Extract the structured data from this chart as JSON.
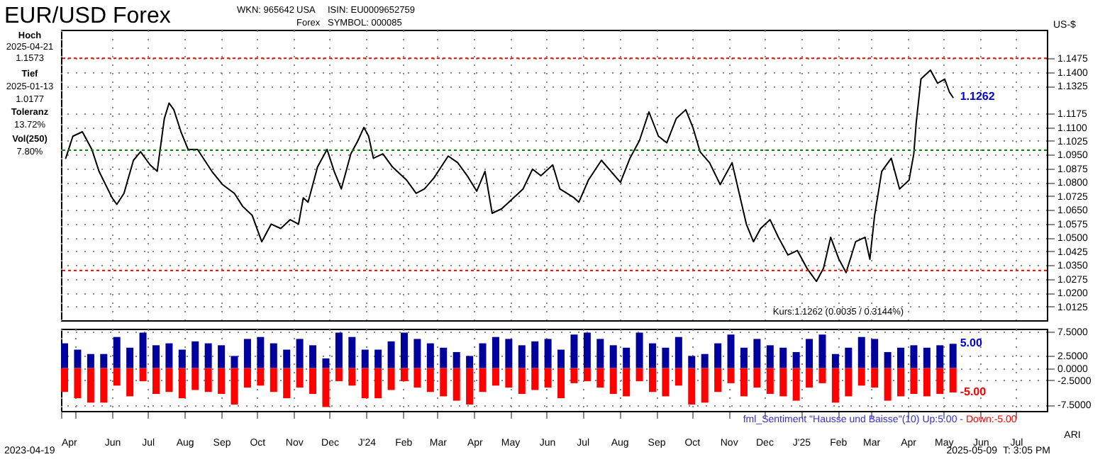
{
  "chart_data": [
    {
      "type": "line",
      "title": "EUR/USD Forex",
      "ylabel": "US-$",
      "x": [
        "2023-04-23",
        "2023-04-29",
        "2023-05-07",
        "2023-05-15",
        "2023-05-21",
        "2023-06-01",
        "2023-06-05",
        "2023-06-11",
        "2023-06-19",
        "2023-06-25",
        "2023-07-03",
        "2023-07-09",
        "2023-07-15",
        "2023-07-19",
        "2023-07-23",
        "2023-07-29",
        "2023-08-04",
        "2023-08-12",
        "2023-08-24",
        "2023-09-02",
        "2023-09-12",
        "2023-09-19",
        "2023-09-27",
        "2023-10-05",
        "2023-10-13",
        "2023-10-21",
        "2023-10-29",
        "2023-11-05",
        "2023-11-09",
        "2023-11-13",
        "2023-11-21",
        "2023-11-29",
        "2023-12-05",
        "2023-12-11",
        "2023-12-19",
        "2023-12-25",
        "2023-12-30",
        "2024-01-03",
        "2024-01-07",
        "2024-01-15",
        "2024-01-23",
        "2024-02-04",
        "2024-02-12",
        "2024-02-19",
        "2024-02-27",
        "2024-03-10",
        "2024-03-18",
        "2024-03-26",
        "2024-04-03",
        "2024-04-10",
        "2024-04-16",
        "2024-04-24",
        "2024-05-04",
        "2024-05-12",
        "2024-05-20",
        "2024-05-27",
        "2024-06-06",
        "2024-06-12",
        "2024-06-24",
        "2024-06-28",
        "2024-07-06",
        "2024-07-17",
        "2024-07-25",
        "2024-08-02",
        "2024-08-10",
        "2024-08-18",
        "2024-08-26",
        "2024-09-03",
        "2024-09-10",
        "2024-09-18",
        "2024-09-26",
        "2024-10-02",
        "2024-10-08",
        "2024-10-16",
        "2024-10-25",
        "2024-11-04",
        "2024-11-10",
        "2024-11-16",
        "2024-11-22",
        "2024-11-28",
        "2024-12-06",
        "2024-12-13",
        "2024-12-21",
        "2024-12-29",
        "2025-01-06",
        "2025-01-14",
        "2025-01-20",
        "2025-01-26",
        "2025-02-02",
        "2025-02-08",
        "2025-02-16",
        "2025-02-24",
        "2025-02-28",
        "2025-03-04",
        "2025-03-10",
        "2025-03-18",
        "2025-03-25",
        "2025-04-02",
        "2025-04-06",
        "2025-04-08",
        "2025-04-12",
        "2025-04-20",
        "2025-04-26",
        "2025-05-02",
        "2025-05-06",
        "2025-05-09"
      ],
      "series": [
        {
          "color": "#000000",
          "values": [
            1.0931,
            1.1051,
            1.1075,
            1.0979,
            1.086,
            1.0716,
            1.068,
            1.074,
            1.092,
            1.0967,
            1.0895,
            1.086,
            1.1147,
            1.1231,
            1.1195,
            1.1075,
            1.0979,
            1.0979,
            1.086,
            1.0788,
            1.074,
            1.0669,
            1.062,
            1.0477,
            1.0573,
            1.0549,
            1.0597,
            1.0573,
            1.0716,
            1.0692,
            1.0884,
            1.0979,
            1.086,
            1.0764,
            1.0955,
            1.1027,
            1.1099,
            1.1051,
            1.0931,
            1.0955,
            1.0884,
            1.0812,
            1.074,
            1.0764,
            1.0824,
            1.0943,
            1.0907,
            1.0836,
            1.0752,
            1.086,
            1.0632,
            1.0656,
            1.0716,
            1.0764,
            1.0872,
            1.0836,
            1.0895,
            1.0764,
            1.0716,
            1.0692,
            1.0812,
            1.092,
            1.086,
            1.08,
            1.0931,
            1.1027,
            1.1183,
            1.1051,
            1.1015,
            1.1147,
            1.1195,
            1.1099,
            1.0967,
            1.0907,
            1.0788,
            1.0907,
            1.074,
            1.0573,
            1.0477,
            1.0549,
            1.0597,
            1.0501,
            1.0405,
            1.0429,
            1.0333,
            1.0261,
            1.0333,
            1.0501,
            1.0381,
            1.0309,
            1.0477,
            1.0501,
            1.0381,
            1.062,
            1.086,
            1.0931,
            1.0764,
            1.0812,
            1.0955,
            1.1123,
            1.1362,
            1.141,
            1.1339,
            1.1362,
            1.1291,
            1.1262
          ]
        }
      ],
      "xlim": [
        "2023-04-19",
        "2025-07-27"
      ],
      "xticks": [
        {
          "value": "2023-04-19",
          "label": null
        },
        {
          "value": "2023-06-01",
          "label": null
        },
        {
          "value": "2023-07-01",
          "label": null
        },
        {
          "value": "2023-08-01",
          "label": null
        },
        {
          "value": "2023-09-01",
          "label": null
        },
        {
          "value": "2023-10-01",
          "label": null
        },
        {
          "value": "2023-11-01",
          "label": null
        },
        {
          "value": "2023-12-01",
          "label": null
        },
        {
          "value": "2024-01-01",
          "label": null
        },
        {
          "value": "2024-02-01",
          "label": null
        },
        {
          "value": "2024-03-01",
          "label": null
        },
        {
          "value": "2024-04-01",
          "label": null
        },
        {
          "value": "2024-05-01",
          "label": null
        },
        {
          "value": "2024-06-01",
          "label": null
        },
        {
          "value": "2024-07-01",
          "label": null
        },
        {
          "value": "2024-08-01",
          "label": null
        },
        {
          "value": "2024-09-01",
          "label": null
        },
        {
          "value": "2024-10-01",
          "label": null
        },
        {
          "value": "2024-11-01",
          "label": null
        },
        {
          "value": "2024-12-01",
          "label": null
        },
        {
          "value": "2025-01-01",
          "label": null
        },
        {
          "value": "2025-02-01",
          "label": null
        },
        {
          "value": "2025-03-01",
          "label": null
        },
        {
          "value": "2025-04-01",
          "label": null
        },
        {
          "value": "2025-05-01",
          "label": null
        },
        {
          "value": "2025-06-01",
          "label": null
        },
        {
          "value": "2025-07-01",
          "label": null
        }
      ],
      "ylim": [
        1.005,
        1.163
      ],
      "yticks": [
        {
          "value": 1.0125,
          "label": "1.0125"
        },
        {
          "value": 1.02,
          "label": "1.0200"
        },
        {
          "value": 1.0275,
          "label": "1.0275"
        },
        {
          "value": 1.035,
          "label": "1.0350"
        },
        {
          "value": 1.0425,
          "label": "1.0425"
        },
        {
          "value": 1.05,
          "label": "1.0500"
        },
        {
          "value": 1.0575,
          "label": "1.0575"
        },
        {
          "value": 1.065,
          "label": "1.0650"
        },
        {
          "value": 1.0725,
          "label": "1.0725"
        },
        {
          "value": 1.08,
          "label": "1.0800"
        },
        {
          "value": 1.0875,
          "label": "1.0875"
        },
        {
          "value": 1.095,
          "label": "1.0950"
        },
        {
          "value": 1.1025,
          "label": "1.1025"
        },
        {
          "value": 1.11,
          "label": "1.1100"
        },
        {
          "value": 1.1175,
          "label": "1.1175"
        },
        {
          "value": 1.1325,
          "label": "1.1325"
        },
        {
          "value": 1.14,
          "label": "1.1400"
        },
        {
          "value": 1.1475,
          "label": "1.1475"
        }
      ],
      "ref_lines": [
        {
          "axis": "y",
          "value": 1.1475,
          "color": "#ff0000",
          "line_style": "dotted"
        },
        {
          "axis": "y",
          "value": 1.0975,
          "color": "#008000",
          "line_style": "dotted"
        },
        {
          "axis": "y",
          "value": 1.0321,
          "color": "#ff0000",
          "line_style": "dotted"
        }
      ],
      "grid": true,
      "tick_labels": "y",
      "annotations": [
        "WKN: 965642",
        "USA",
        "Forex",
        "ISIN: EU0009652759",
        "SYMBOL: 000085",
        "Hoch",
        "2025-04-21",
        "1.1573",
        "Tief",
        "2025-01-13",
        "1.0177",
        "Toleranz",
        "13.72%",
        "Vol(250)",
        "7.80%",
        "Kurs:1.1262 (0.0035 / 0.3144%)",
        {
          "text": "1.1262",
          "x": "2025-05-09",
          "y": 1.1262
        }
      ]
    },
    {
      "type": "bar",
      "x": [
        "2023-04-22",
        "2023-05-03",
        "2023-05-14",
        "2023-05-25",
        "2023-06-05",
        "2023-06-16",
        "2023-06-27",
        "2023-07-08",
        "2023-07-19",
        "2023-07-30",
        "2023-08-10",
        "2023-08-21",
        "2023-09-01",
        "2023-09-12",
        "2023-09-23",
        "2023-10-04",
        "2023-10-15",
        "2023-10-26",
        "2023-11-06",
        "2023-11-17",
        "2023-11-28",
        "2023-12-09",
        "2023-12-20",
        "2023-12-31",
        "2024-01-11",
        "2024-01-22",
        "2024-02-02",
        "2024-02-13",
        "2024-02-24",
        "2024-03-06",
        "2024-03-17",
        "2024-03-28",
        "2024-04-08",
        "2024-04-19",
        "2024-04-30",
        "2024-05-11",
        "2024-05-22",
        "2024-06-02",
        "2024-06-13",
        "2024-06-24",
        "2024-07-05",
        "2024-07-16",
        "2024-07-27",
        "2024-08-07",
        "2024-08-18",
        "2024-08-29",
        "2024-09-09",
        "2024-09-20",
        "2024-10-01",
        "2024-10-12",
        "2024-10-23",
        "2024-11-03",
        "2024-11-14",
        "2024-11-25",
        "2024-12-06",
        "2024-12-17",
        "2024-12-28",
        "2025-01-08",
        "2025-01-19",
        "2025-01-30",
        "2025-02-10",
        "2025-02-21",
        "2025-03-04",
        "2025-03-15",
        "2025-03-26",
        "2025-04-06",
        "2025-04-17",
        "2025-04-28",
        "2025-05-09"
      ],
      "series": [
        {
          "color": "#00009c",
          "values": [
            5.1,
            3.8,
            2.9,
            2.9,
            6.4,
            4.2,
            7.3,
            4.7,
            5.1,
            3.8,
            5.5,
            5.1,
            4.7,
            2.5,
            6.0,
            6.4,
            5.1,
            3.8,
            6.0,
            4.7,
            2.0,
            7.3,
            6.4,
            3.8,
            3.8,
            5.5,
            7.3,
            6.0,
            5.1,
            4.2,
            3.3,
            2.5,
            5.1,
            6.4,
            6.0,
            4.7,
            5.5,
            6.0,
            3.8,
            6.9,
            7.3,
            6.0,
            4.7,
            4.2,
            7.3,
            5.1,
            4.2,
            6.4,
            2.5,
            2.9,
            5.1,
            6.9,
            4.2,
            6.0,
            4.7,
            4.2,
            3.3,
            6.0,
            6.9,
            2.9,
            4.2,
            6.4,
            6.0,
            3.3,
            4.2,
            4.7,
            4.2,
            4.7,
            5.0
          ]
        },
        {
          "color": "#ff0000",
          "values": [
            -4.9,
            -6.2,
            -7.1,
            -7.1,
            -3.6,
            -5.8,
            -2.7,
            -5.3,
            -4.9,
            -6.2,
            -4.5,
            -4.9,
            -5.3,
            -7.5,
            -4.0,
            -3.6,
            -4.9,
            -6.2,
            -4.0,
            -5.3,
            -8.0,
            -2.7,
            -3.6,
            -6.2,
            -6.2,
            -4.5,
            -2.7,
            -4.0,
            -4.9,
            -5.8,
            -6.7,
            -7.5,
            -4.9,
            -3.6,
            -4.0,
            -5.3,
            -4.5,
            -4.0,
            -6.2,
            -3.1,
            -2.7,
            -4.0,
            -5.3,
            -5.8,
            -2.7,
            -4.9,
            -5.8,
            -3.6,
            -7.5,
            -7.1,
            -4.9,
            -3.1,
            -5.8,
            -4.0,
            -5.3,
            -5.8,
            -6.7,
            -4.0,
            -3.1,
            -7.1,
            -5.8,
            -3.6,
            -4.0,
            -6.7,
            -5.8,
            -5.3,
            -5.8,
            -5.3,
            -5.0
          ]
        }
      ],
      "xlim": [
        "2023-04-19",
        "2025-07-27"
      ],
      "xticks": [
        {
          "value": "2023-04-19",
          "label": "Apr"
        },
        {
          "value": "2023-05-01",
          "label": null
        },
        {
          "value": "2023-06-01",
          "label": "Jun"
        },
        {
          "value": "2023-07-01",
          "label": "Jul"
        },
        {
          "value": "2023-08-01",
          "label": "Aug"
        },
        {
          "value": "2023-09-01",
          "label": "Sep"
        },
        {
          "value": "2023-10-01",
          "label": "Oct"
        },
        {
          "value": "2023-11-01",
          "label": "Nov"
        },
        {
          "value": "2023-12-01",
          "label": "Dec"
        },
        {
          "value": "2024-01-01",
          "label": "J'24"
        },
        {
          "value": "2024-02-01",
          "label": "Feb"
        },
        {
          "value": "2024-03-01",
          "label": "Mar"
        },
        {
          "value": "2024-04-01",
          "label": "Apr"
        },
        {
          "value": "2024-05-01",
          "label": "May"
        },
        {
          "value": "2024-06-01",
          "label": "Jun"
        },
        {
          "value": "2024-07-01",
          "label": "Jul"
        },
        {
          "value": "2024-08-01",
          "label": "Aug"
        },
        {
          "value": "2024-09-01",
          "label": "Sep"
        },
        {
          "value": "2024-10-01",
          "label": "Oct"
        },
        {
          "value": "2024-11-01",
          "label": "Nov"
        },
        {
          "value": "2024-12-01",
          "label": "Dec"
        },
        {
          "value": "2025-01-01",
          "label": "J'25"
        },
        {
          "value": "2025-02-01",
          "label": "Feb"
        },
        {
          "value": "2025-03-01",
          "label": "Mar"
        },
        {
          "value": "2025-04-01",
          "label": "Apr"
        },
        {
          "value": "2025-05-01",
          "label": "May"
        },
        {
          "value": "2025-06-01",
          "label": "Jun"
        },
        {
          "value": "2025-07-01",
          "label": "Jul"
        }
      ],
      "ylim": [
        -8.8,
        8.1
      ],
      "stacked": true,
      "yticks": [
        {
          "value": 7.5,
          "label": "7.5000"
        },
        {
          "value": 2.5,
          "label": "2.5000"
        },
        {
          "value": 0,
          "label": "0.0000"
        },
        {
          "value": -2.5,
          "label": "-2.5000"
        },
        {
          "value": -7.5,
          "label": "-7.5000"
        }
      ],
      "grid": true,
      "annotations": [
        "fml_Sentiment \"Hausse und Baisse\"(10) Up:5.00 -",
        "Down:-5.00",
        "ARI",
        "2023-04-19",
        "2025-05-09",
        "T: 3:05 PM",
        {
          "text": "5.00",
          "x": "2025-05-09",
          "y": 5.0
        },
        {
          "text": "-5.00",
          "x": "2025-05-09",
          "y": -5.0
        }
      ]
    }
  ]
}
